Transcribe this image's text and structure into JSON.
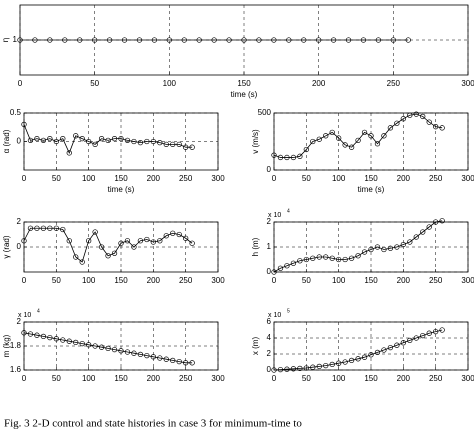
{
  "caption": "Fig. 3    2-D control and state histories in case 3 for minimum-time to",
  "chart_data": [
    {
      "type": "line",
      "ylabel": "η",
      "xlabel": "time (s)",
      "x": [
        0,
        10,
        20,
        30,
        40,
        50,
        60,
        70,
        80,
        90,
        100,
        110,
        120,
        130,
        140,
        150,
        160,
        170,
        180,
        190,
        200,
        210,
        220,
        230,
        240,
        250,
        260
      ],
      "series": [
        {
          "color": "#000000",
          "values": [
            1,
            1,
            1,
            1,
            1,
            1,
            1,
            1,
            1,
            1,
            1,
            1,
            1,
            1,
            1,
            1,
            1,
            1,
            1,
            1,
            1,
            1,
            1,
            1,
            1,
            1,
            1
          ]
        }
      ],
      "xlim": [
        0,
        300
      ],
      "xticks": [
        0,
        50,
        100,
        150,
        200,
        250,
        300
      ],
      "ylim": [
        0,
        2
      ],
      "yticks": [
        1
      ],
      "grid": true
    },
    {
      "type": "line",
      "ylabel": "α (rad)",
      "xlabel": "time (s)",
      "x": [
        0,
        10,
        20,
        30,
        40,
        50,
        60,
        70,
        80,
        90,
        100,
        110,
        120,
        130,
        140,
        150,
        160,
        170,
        180,
        190,
        200,
        210,
        220,
        230,
        240,
        250,
        260
      ],
      "series": [
        {
          "color": "#000000",
          "values": [
            0.3,
            0.02,
            0.05,
            0.02,
            0.05,
            0,
            0.05,
            -0.2,
            0.1,
            0.05,
            0,
            -0.05,
            0.05,
            0.02,
            0.05,
            0.05,
            0.02,
            0,
            -0.02,
            0,
            0,
            -0.02,
            -0.05,
            -0.05,
            -0.05,
            -0.1,
            -0.1
          ]
        }
      ],
      "xlim": [
        0,
        300
      ],
      "xticks": [
        0,
        50,
        100,
        150,
        200,
        250,
        300
      ],
      "ylim": [
        -0.5,
        0.5
      ],
      "yticks": [
        0,
        0.5
      ],
      "grid": true
    },
    {
      "type": "line",
      "ylabel": "v (m/s)",
      "xlabel": "time (s)",
      "x": [
        0,
        10,
        20,
        30,
        40,
        50,
        60,
        70,
        80,
        90,
        100,
        110,
        120,
        130,
        140,
        150,
        160,
        170,
        180,
        190,
        200,
        210,
        220,
        230,
        240,
        250,
        260
      ],
      "series": [
        {
          "color": "#000000",
          "values": [
            130,
            110,
            110,
            110,
            120,
            180,
            250,
            270,
            300,
            330,
            280,
            220,
            200,
            260,
            330,
            300,
            230,
            300,
            370,
            410,
            450,
            480,
            490,
            470,
            420,
            380,
            370
          ]
        }
      ],
      "xlim": [
        0,
        300
      ],
      "xticks": [
        0,
        50,
        100,
        150,
        200,
        250,
        300
      ],
      "ylim": [
        0,
        500
      ],
      "yticks": [
        0,
        500
      ],
      "grid": true
    },
    {
      "type": "line",
      "ylabel": "γ (rad)",
      "x": [
        0,
        10,
        20,
        30,
        40,
        50,
        60,
        70,
        80,
        90,
        100,
        110,
        120,
        130,
        140,
        150,
        160,
        170,
        180,
        190,
        200,
        210,
        220,
        230,
        240,
        250,
        260
      ],
      "series": [
        {
          "color": "#000000",
          "values": [
            0.5,
            1.5,
            1.5,
            1.5,
            1.5,
            1.5,
            1.4,
            0.5,
            -0.8,
            -1.2,
            0.5,
            1.2,
            0,
            -0.7,
            -0.5,
            0.3,
            0.5,
            0,
            0.5,
            0.6,
            0.4,
            0.5,
            0.9,
            1.1,
            1,
            0.7,
            0.3
          ]
        }
      ],
      "xlim": [
        0,
        300
      ],
      "xticks": [
        0,
        50,
        100,
        150,
        200,
        250,
        300
      ],
      "ylim": [
        -2,
        2
      ],
      "yticks": [
        0,
        2
      ],
      "grid": true
    },
    {
      "type": "line",
      "ylabel": "h (m)",
      "multiplier": "x 10",
      "exponent": "4",
      "x": [
        0,
        10,
        20,
        30,
        40,
        50,
        60,
        70,
        80,
        90,
        100,
        110,
        120,
        130,
        140,
        150,
        160,
        170,
        180,
        190,
        200,
        210,
        220,
        230,
        240,
        250,
        260
      ],
      "series": [
        {
          "color": "#000000",
          "values": [
            0,
            0.15,
            0.25,
            0.35,
            0.45,
            0.5,
            0.55,
            0.6,
            0.6,
            0.55,
            0.5,
            0.5,
            0.55,
            0.65,
            0.8,
            0.9,
            1,
            0.9,
            0.95,
            1,
            1.1,
            1.2,
            1.4,
            1.6,
            1.8,
            2,
            2.05
          ]
        }
      ],
      "xlim": [
        0,
        300
      ],
      "xticks": [
        0,
        50,
        100,
        150,
        200,
        250,
        300
      ],
      "ylim": [
        0,
        2
      ],
      "yticks": [
        0,
        1,
        2
      ],
      "grid": true
    },
    {
      "type": "line",
      "ylabel": "m (kg)",
      "multiplier": "x 10",
      "exponent": "4",
      "x": [
        0,
        10,
        20,
        30,
        40,
        50,
        60,
        70,
        80,
        90,
        100,
        110,
        120,
        130,
        140,
        150,
        160,
        170,
        180,
        190,
        200,
        210,
        220,
        230,
        240,
        250,
        260
      ],
      "series": [
        {
          "color": "#000000",
          "values": [
            1.91,
            1.9,
            1.89,
            1.88,
            1.87,
            1.86,
            1.85,
            1.84,
            1.83,
            1.82,
            1.81,
            1.8,
            1.79,
            1.78,
            1.77,
            1.76,
            1.75,
            1.74,
            1.73,
            1.72,
            1.71,
            1.7,
            1.69,
            1.68,
            1.67,
            1.66,
            1.66
          ]
        }
      ],
      "xlim": [
        0,
        300
      ],
      "xticks": [
        0,
        50,
        100,
        150,
        200,
        250,
        300
      ],
      "ylim": [
        1.6,
        2
      ],
      "yticks": [
        1.6,
        1.8,
        2
      ],
      "grid": true
    },
    {
      "type": "line",
      "ylabel": "x (m)",
      "multiplier": "x 10",
      "exponent": "5",
      "x": [
        0,
        10,
        20,
        30,
        40,
        50,
        60,
        70,
        80,
        90,
        100,
        110,
        120,
        130,
        140,
        150,
        160,
        170,
        180,
        190,
        200,
        210,
        220,
        230,
        240,
        250,
        260
      ],
      "series": [
        {
          "color": "#000000",
          "values": [
            0,
            0.05,
            0.1,
            0.15,
            0.2,
            0.25,
            0.35,
            0.45,
            0.55,
            0.7,
            0.85,
            1,
            1.2,
            1.4,
            1.6,
            1.9,
            2.2,
            2.5,
            2.8,
            3.1,
            3.4,
            3.7,
            4,
            4.3,
            4.6,
            4.8,
            5
          ]
        }
      ],
      "xlim": [
        0,
        300
      ],
      "xticks": [
        0,
        50,
        100,
        150,
        200,
        250,
        300
      ],
      "ylim": [
        0,
        6
      ],
      "yticks": [
        0,
        2,
        4,
        6
      ],
      "grid": true
    }
  ]
}
